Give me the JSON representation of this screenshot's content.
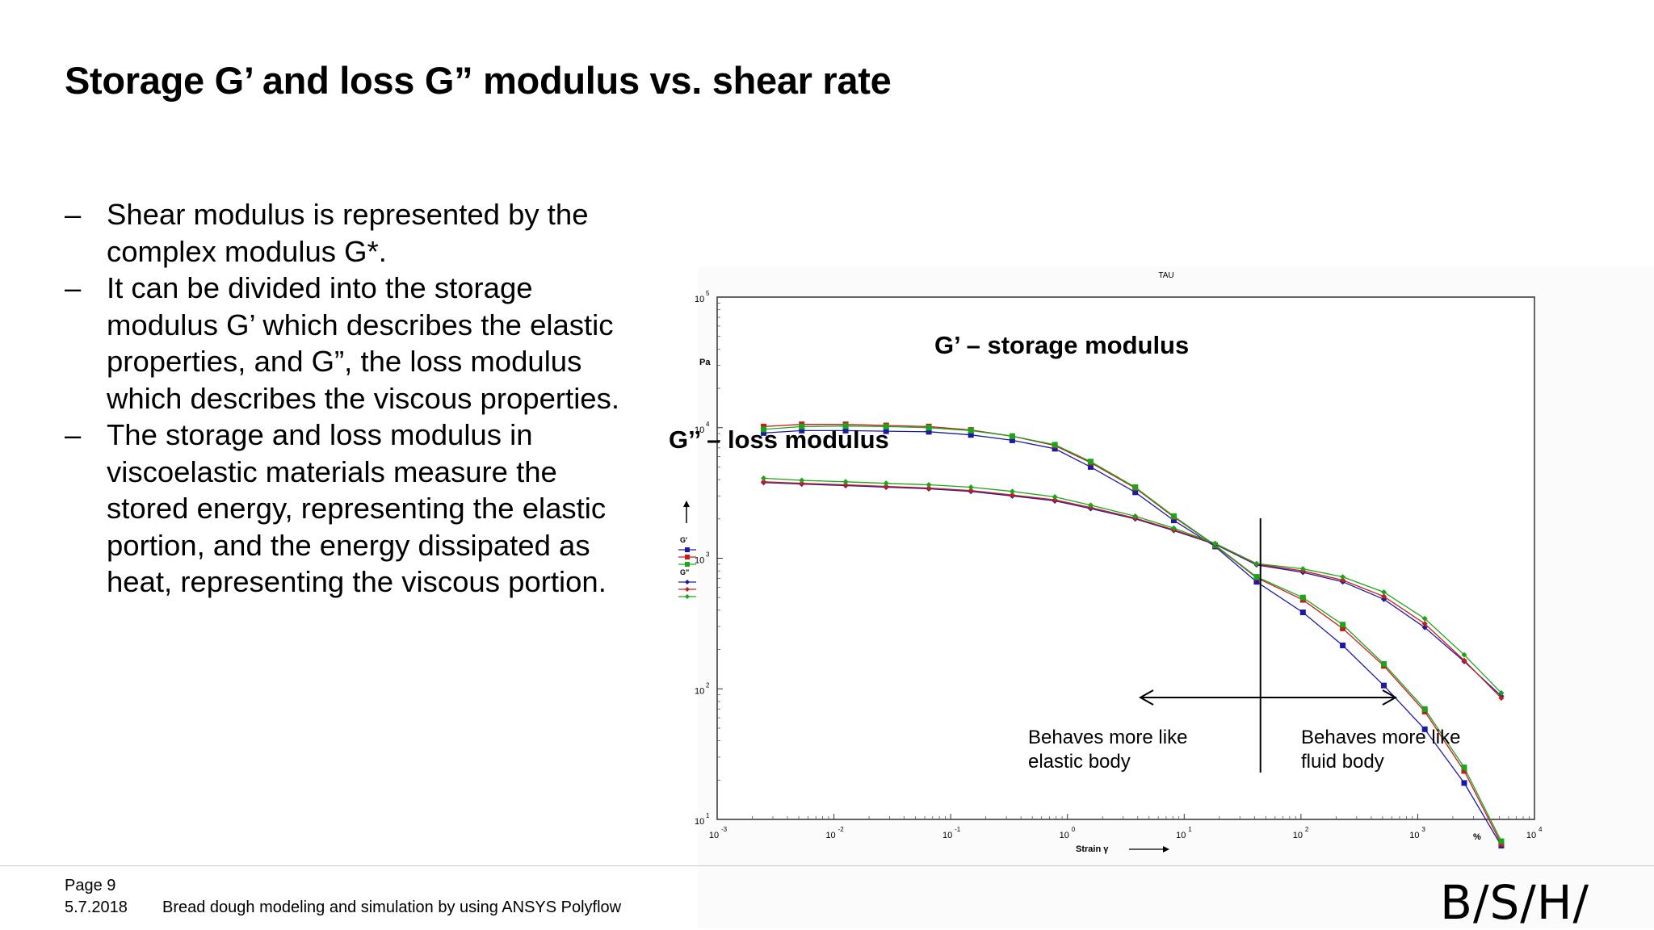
{
  "slide": {
    "title": "Storage G’ and loss G” modulus vs. shear rate",
    "bullets": [
      {
        "dash": "–",
        "lines": [
          "Shear modulus is represented by the",
          "complex modulus G*."
        ]
      },
      {
        "dash": "–",
        "lines": [
          "It can be divided into the storage",
          "modulus G’ which describes the elastic",
          "properties, and G”, the loss modulus",
          "which describes the viscous properties."
        ]
      },
      {
        "dash": "–",
        "lines": [
          "The storage and loss modulus in",
          "viscoelastic materials measure the",
          "stored energy, representing the elastic",
          "portion, and the energy dissipated as",
          "heat, representing the viscous portion."
        ]
      }
    ]
  },
  "footer": {
    "page": "Page 9",
    "date": "5.7.2018",
    "text": "Bread dough modeling and simulation by using ANSYS Polyflow",
    "logo": "B/S/H/"
  },
  "chart_data": {
    "type": "line",
    "title": "TAU",
    "scale": {
      "x": "log",
      "y": "log"
    },
    "xlim": [
      0.001,
      10000
    ],
    "ylim": [
      10,
      100000
    ],
    "xlabel": "Strain γ",
    "x_unit": "%",
    "ylabel": "Pa",
    "x_ticks": [
      {
        "base": "10",
        "exp": "-3",
        "value": 0.001
      },
      {
        "base": "10",
        "exp": "-2",
        "value": 0.01
      },
      {
        "base": "10",
        "exp": "-1",
        "value": 0.1
      },
      {
        "base": "10",
        "exp": "0",
        "value": 1
      },
      {
        "base": "10",
        "exp": "1",
        "value": 10
      },
      {
        "base": "10",
        "exp": "2",
        "value": 100
      },
      {
        "base": "10",
        "exp": "3",
        "value": 1000
      },
      {
        "base": "10",
        "exp": "4",
        "value": 10000
      }
    ],
    "y_ticks": [
      {
        "base": "10",
        "exp": "1",
        "value": 10
      },
      {
        "base": "10",
        "exp": "2",
        "value": 100
      },
      {
        "base": "10",
        "exp": "3",
        "value": 1000
      },
      {
        "base": "10",
        "exp": "4",
        "value": 10000
      },
      {
        "base": "10",
        "exp": "5",
        "value": 100000
      }
    ],
    "legend": {
      "groups": [
        {
          "label": "G'",
          "marker": "square"
        },
        {
          "label": "G\"",
          "marker": "diamond"
        }
      ]
    },
    "x": [
      0.0025,
      0.0053,
      0.0126,
      0.028,
      0.065,
      0.149,
      0.337,
      0.78,
      1.58,
      3.81,
      8.15,
      18.4,
      41.7,
      104,
      228,
      513,
      1150,
      2500,
      5200
    ],
    "series": [
      {
        "name": "G' run 1",
        "group": "G'",
        "marker": "square",
        "color": "#1a1aa6",
        "values": [
          9100,
          9500,
          9500,
          9400,
          9300,
          8800,
          8000,
          6900,
          5000,
          3200,
          1950,
          1230,
          660,
          385,
          215,
          106,
          49,
          19,
          6.3
        ]
      },
      {
        "name": "G' run 2",
        "group": "G'",
        "marker": "square",
        "color": "#cc1a1a",
        "values": [
          10200,
          10600,
          10600,
          10400,
          10200,
          9600,
          8600,
          7300,
          5400,
          3450,
          2070,
          1250,
          710,
          480,
          290,
          150,
          67,
          23.5,
          6.5
        ]
      },
      {
        "name": "G' run 3",
        "group": "G'",
        "marker": "square",
        "color": "#1aa61a",
        "values": [
          9700,
          10200,
          10300,
          10200,
          10000,
          9500,
          8600,
          7400,
          5500,
          3500,
          2100,
          1260,
          720,
          500,
          310,
          155,
          70,
          25,
          6.8
        ]
      },
      {
        "name": "G\" run 1",
        "group": "G\"",
        "marker": "diamond",
        "color": "#1a1aa6",
        "values": [
          3800,
          3700,
          3600,
          3500,
          3400,
          3250,
          3000,
          2750,
          2400,
          2000,
          1630,
          1280,
          890,
          780,
          660,
          485,
          295,
          162,
          88
        ]
      },
      {
        "name": "G\" run 2",
        "group": "G\"",
        "marker": "diamond",
        "color": "#cc1a1a",
        "values": [
          3850,
          3750,
          3650,
          3550,
          3450,
          3300,
          3050,
          2800,
          2450,
          2030,
          1650,
          1290,
          900,
          800,
          680,
          510,
          315,
          165,
          85
        ]
      },
      {
        "name": "G\" run 3",
        "group": "G\"",
        "marker": "diamond",
        "color": "#1aa61a",
        "values": [
          4100,
          3950,
          3850,
          3750,
          3650,
          3500,
          3250,
          2950,
          2550,
          2100,
          1700,
          1300,
          910,
          830,
          720,
          550,
          345,
          182,
          93
        ]
      }
    ],
    "annotations": [
      {
        "id": "gprime",
        "text": "G’ – storage modulus"
      },
      {
        "id": "gdouble",
        "text": "G’’ – loss modulus"
      },
      {
        "id": "elastic",
        "lines": [
          "Behaves more like",
          "elastic body"
        ]
      },
      {
        "id": "fluid",
        "lines": [
          "Behaves more like",
          "fluid body"
        ]
      }
    ],
    "crossover_x": 45
  }
}
